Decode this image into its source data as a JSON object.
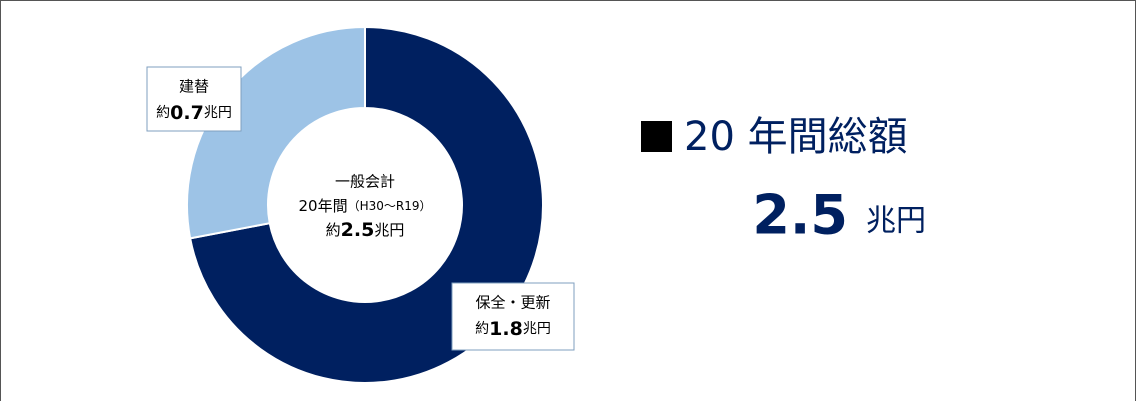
{
  "chart_data": {
    "type": "donut",
    "categories": [
      "保全・更新",
      "建替"
    ],
    "values": [
      1.8,
      0.7
    ],
    "value_labels": [
      "約1.8兆円",
      "約0.7兆円"
    ],
    "colors": [
      "#002060",
      "#9dc3e6"
    ],
    "center": {
      "title": "一般会計",
      "period": "20年間",
      "range": "（H30～R19）",
      "value_label": "約2.5兆円"
    },
    "total": {
      "label": "20 年間総額",
      "value": 2.5,
      "unit": "兆円"
    }
  }
}
